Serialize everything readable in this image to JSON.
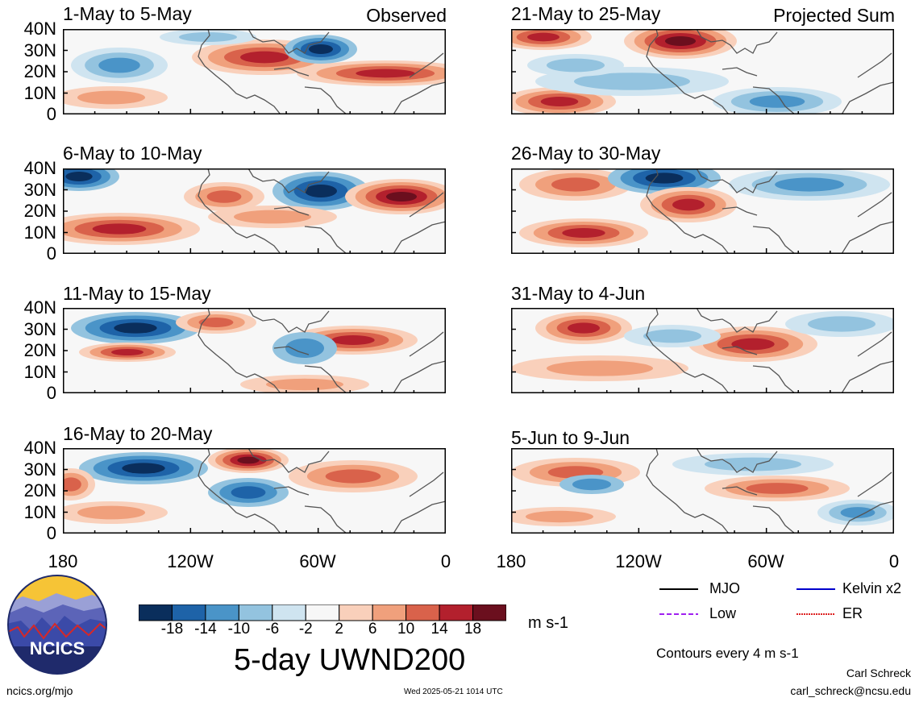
{
  "panels": [
    {
      "title": "1-May to 5-May",
      "corner": "Observed"
    },
    {
      "title": "21-May to 25-May",
      "corner": "Projected Sum"
    },
    {
      "title": "6-May to 10-May",
      "corner": ""
    },
    {
      "title": "26-May to 30-May",
      "corner": ""
    },
    {
      "title": "11-May to 15-May",
      "corner": ""
    },
    {
      "title": "31-May to 4-Jun",
      "corner": ""
    },
    {
      "title": "16-May to 20-May",
      "corner": ""
    },
    {
      "title": "5-Jun to 9-Jun",
      "corner": ""
    }
  ],
  "y_ticks": [
    "40N",
    "30N",
    "20N",
    "10N",
    "0"
  ],
  "x_ticks": [
    "180",
    "120W",
    "60W",
    "0"
  ],
  "colorbar": {
    "ticks": [
      "-18",
      "-14",
      "-10",
      "-6",
      "-2",
      "2",
      "6",
      "10",
      "14",
      "18"
    ],
    "colors": [
      "#0a2e5c",
      "#1e63a8",
      "#4a94c8",
      "#93c3df",
      "#cfe4f0",
      "#f7f7f7",
      "#f9d0bb",
      "#f0a07c",
      "#d9624b",
      "#b3202d",
      "#6b0f1e"
    ],
    "units": "m s-1"
  },
  "field_title": "5-day UWND200",
  "legend": {
    "items": [
      {
        "label": "MJO",
        "color": "#000000",
        "dashed": false
      },
      {
        "label": "Kelvin x2",
        "color": "#0000cc",
        "dashed": false
      },
      {
        "label": "Low",
        "color": "#a020f0",
        "dashed": true
      },
      {
        "label": "ER",
        "color": "#dd2222",
        "dashed": false
      }
    ],
    "note": "Contours every 4 m s-1"
  },
  "logo_text": "NCICS",
  "footer": {
    "url": "ncics.org/mjo",
    "timestamp": "Wed 2025-05-21 1014 UTC",
    "author": "Carl Schreck",
    "email": "carl_schreck@ncsu.edu"
  }
}
